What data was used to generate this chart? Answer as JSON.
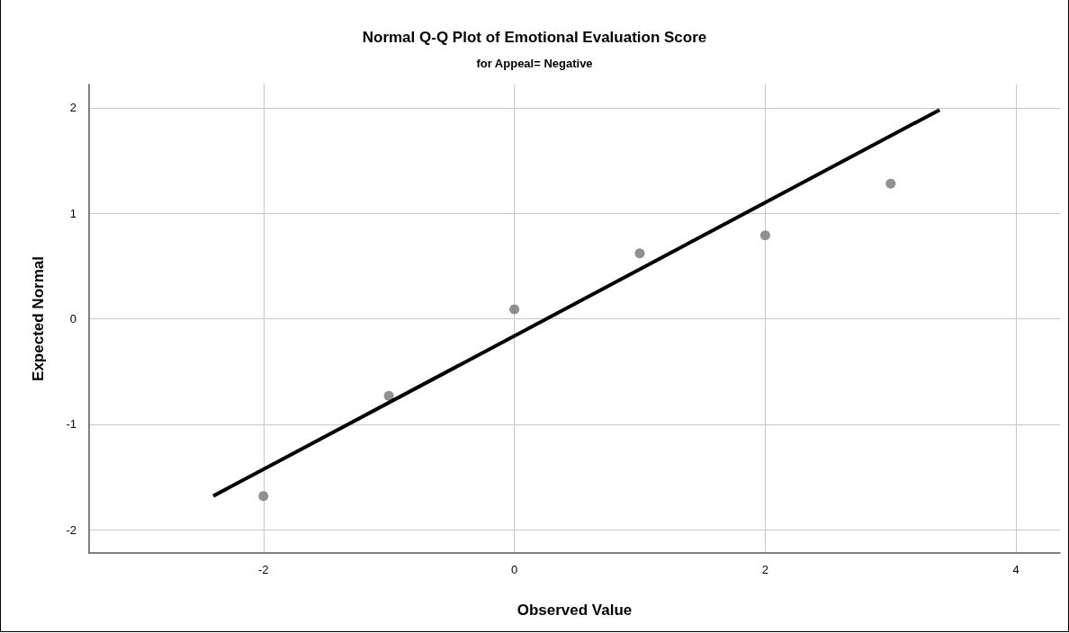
{
  "chart_data": {
    "type": "scatter",
    "title": "Normal Q-Q Plot of Emotional Evaluation Score",
    "subtitle": "for Appeal= Negative",
    "xlabel": "Observed Value",
    "ylabel": "Expected Normal",
    "series": [
      {
        "color": "#767676",
        "x": [
          -2,
          -1,
          0,
          1,
          2,
          3
        ],
        "values": [
          -1.68,
          -0.73,
          0.09,
          0.62,
          0.79,
          1.28
        ],
        "marker": "circle"
      },
      {
        "type": "line",
        "color": "#000000",
        "x": [
          -2.4,
          3.39
        ],
        "values": [
          -1.68,
          1.98
        ],
        "marker": "none",
        "line_style": "solid"
      }
    ],
    "xlim": [
      -3.39,
      4.35
    ],
    "xticks": [
      -2,
      0,
      2,
      4
    ],
    "ylim": [
      -2.22,
      2.22
    ],
    "yticks": [
      -2,
      -1,
      0,
      1,
      2
    ],
    "grid": true
  }
}
